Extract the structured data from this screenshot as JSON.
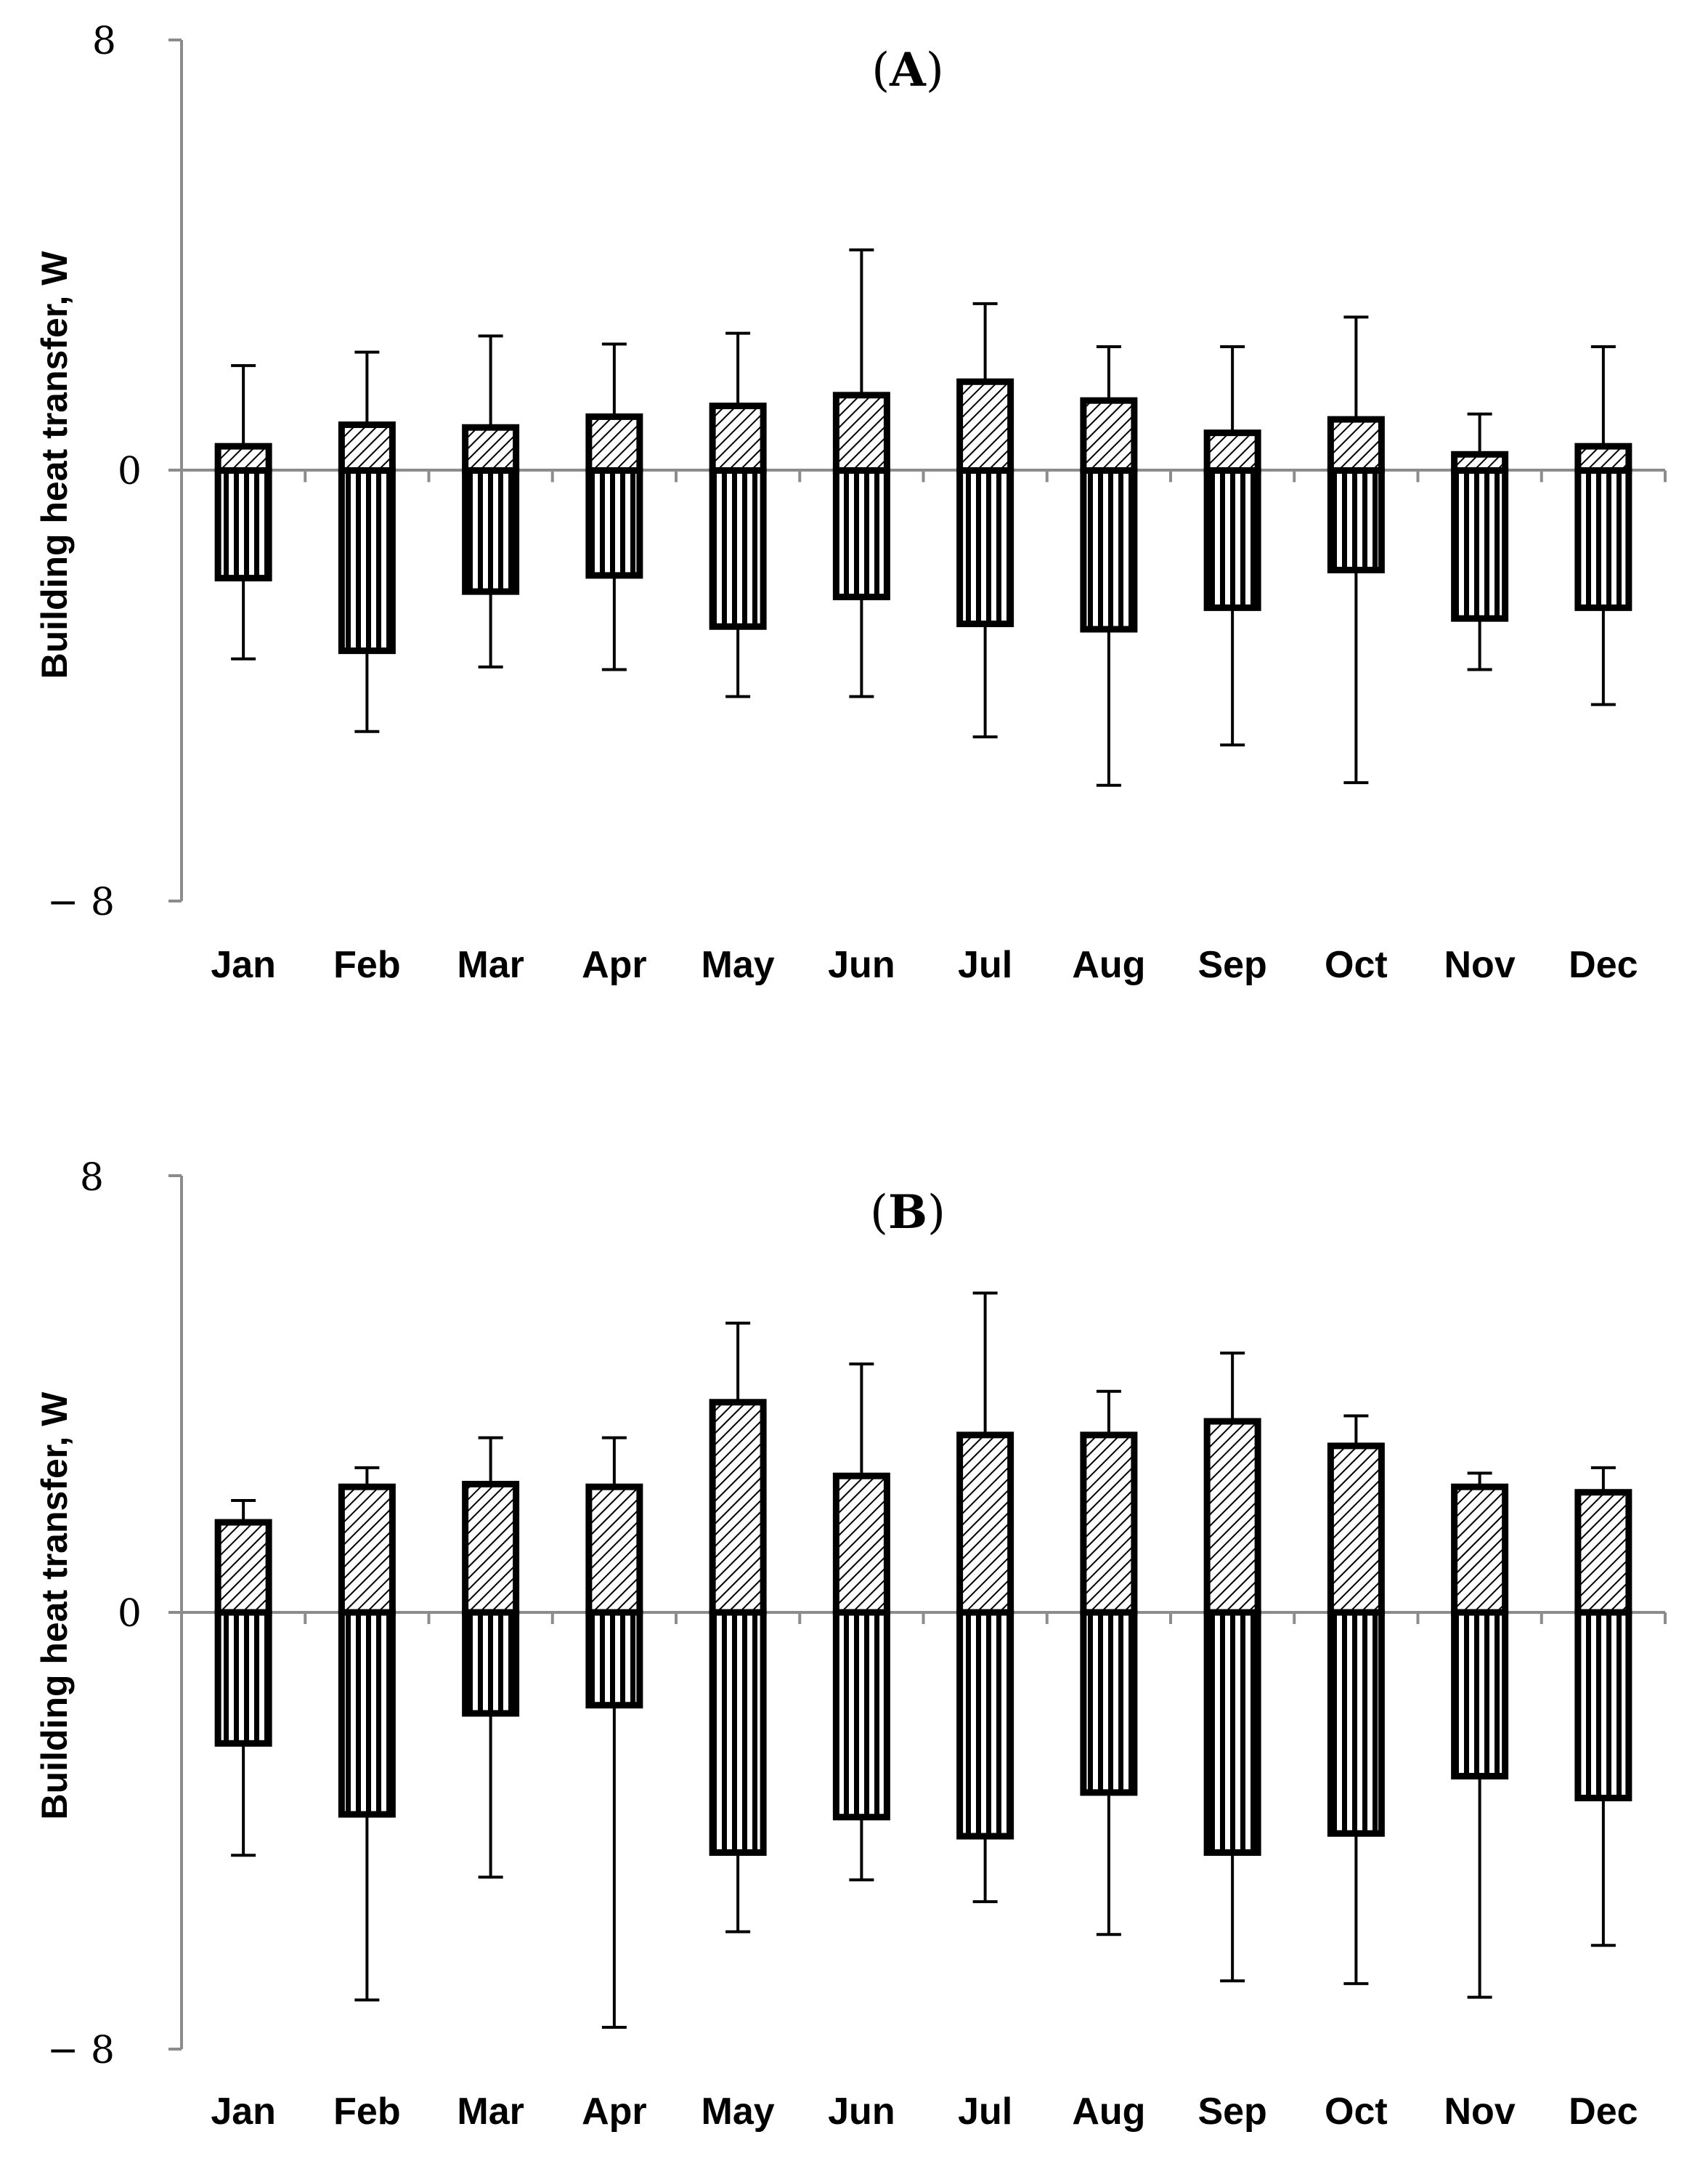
{
  "chart_data": [
    {
      "type": "bar",
      "panel_label": "A",
      "ylabel": "Building heat transfer, W",
      "ylim": [
        -8,
        8
      ],
      "ytick_labels": [
        "8",
        "0",
        "− 8"
      ],
      "categories": [
        "Jan",
        "Feb",
        "Mar",
        "Apr",
        "May",
        "Jun",
        "Jul",
        "Aug",
        "Sep",
        "Oct",
        "Nov",
        "Dec"
      ],
      "series": [
        {
          "name": "positive",
          "pattern": "diagonal-hatch",
          "values": [
            0.45,
            0.85,
            0.8,
            1.0,
            1.2,
            1.4,
            1.65,
            1.3,
            0.7,
            0.95,
            0.3,
            0.45
          ],
          "error_upper": [
            1.95,
            2.2,
            2.5,
            2.35,
            2.55,
            4.1,
            3.1,
            2.3,
            2.3,
            2.85,
            1.05,
            2.3
          ]
        },
        {
          "name": "negative",
          "pattern": "vertical-stripes",
          "values": [
            -2.0,
            -3.35,
            -2.25,
            -1.95,
            -2.9,
            -2.35,
            -2.85,
            -2.95,
            -2.55,
            -1.85,
            -2.75,
            -2.55
          ],
          "error_lower": [
            -3.5,
            -4.85,
            -3.65,
            -3.7,
            -4.2,
            -4.2,
            -4.95,
            -5.85,
            -5.1,
            -5.8,
            -3.7,
            -4.35
          ]
        }
      ]
    },
    {
      "type": "bar",
      "panel_label": "B",
      "ylabel": "Building heat transfer, W",
      "ylim": [
        -8,
        8
      ],
      "ytick_labels": [
        "8",
        "0",
        "− 8"
      ],
      "categories": [
        "Jan",
        "Feb",
        "Mar",
        "Apr",
        "May",
        "Jun",
        "Jul",
        "Aug",
        "Sep",
        "Oct",
        "Nov",
        "Dec"
      ],
      "series": [
        {
          "name": "positive",
          "pattern": "diagonal-hatch",
          "values": [
            1.65,
            2.3,
            2.35,
            2.3,
            3.85,
            2.5,
            3.25,
            3.25,
            3.5,
            3.05,
            2.3,
            2.2
          ],
          "error_upper": [
            2.05,
            2.65,
            3.2,
            3.2,
            5.3,
            4.55,
            5.85,
            4.05,
            4.75,
            3.6,
            2.55,
            2.65
          ]
        },
        {
          "name": "negative",
          "pattern": "vertical-stripes",
          "values": [
            -2.4,
            -3.7,
            -1.85,
            -1.7,
            -4.4,
            -3.75,
            -4.1,
            -3.3,
            -4.4,
            -4.05,
            -3.0,
            -3.4
          ],
          "error_lower": [
            -4.45,
            -7.1,
            -4.85,
            -7.6,
            -5.85,
            -4.9,
            -5.3,
            -5.9,
            -6.75,
            -6.8,
            -7.05,
            -6.1
          ]
        }
      ]
    }
  ]
}
